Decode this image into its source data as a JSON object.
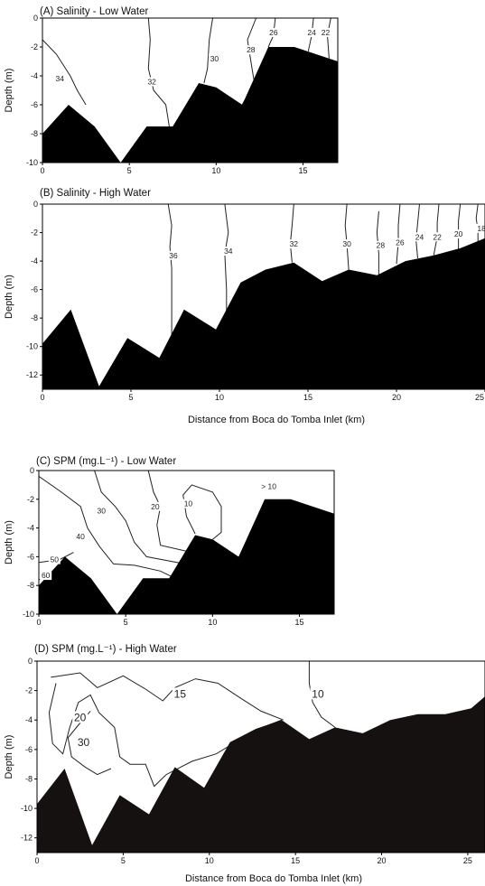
{
  "chart_data": [
    {
      "type": "contour-section",
      "title": "(A) Salinity - Low Water",
      "ylabel": "Depth (m)",
      "xlabel": "",
      "xlim": [
        0,
        17
      ],
      "ylim": [
        -10,
        0
      ],
      "xticks": [
        0,
        5,
        10,
        15
      ],
      "yticks": [
        0,
        -2,
        -4,
        -6,
        -8,
        -10
      ],
      "bottom": [
        [
          0,
          -8
        ],
        [
          1.5,
          -6
        ],
        [
          3,
          -7.5
        ],
        [
          4.5,
          -10
        ],
        [
          6,
          -7.5
        ],
        [
          7.5,
          -7.5
        ],
        [
          9,
          -4.5
        ],
        [
          10,
          -4.8
        ],
        [
          11.5,
          -6
        ],
        [
          13,
          -2
        ],
        [
          14.5,
          -2
        ],
        [
          17,
          -3
        ]
      ],
      "contours": [
        {
          "label": "34",
          "points": [
            [
              0,
              -1.5
            ],
            [
              0.8,
              -2.5
            ],
            [
              1.6,
              -4
            ],
            [
              2,
              -5
            ],
            [
              2.5,
              -6
            ]
          ],
          "label_at": [
            1,
            -4.2
          ]
        },
        {
          "label": "32",
          "points": [
            [
              6.1,
              0
            ],
            [
              6.2,
              -1.5
            ],
            [
              6.1,
              -3.5
            ],
            [
              6.4,
              -5
            ],
            [
              7.1,
              -6
            ],
            [
              7.3,
              -7.5
            ]
          ],
          "label_at": [
            6.3,
            -4.4
          ]
        },
        {
          "label": "30",
          "points": [
            [
              9.8,
              0
            ],
            [
              9.6,
              -1.5
            ],
            [
              9.5,
              -3.5
            ],
            [
              9.3,
              -4.5
            ]
          ],
          "label_at": [
            9.9,
            -2.8
          ]
        },
        {
          "label": "28",
          "points": [
            [
              12.3,
              0
            ],
            [
              11.8,
              -1.5
            ],
            [
              12,
              -3
            ],
            [
              12.2,
              -4.5
            ],
            [
              11.5,
              -6
            ]
          ],
          "label_at": [
            12,
            -2.2
          ]
        },
        {
          "label": "26",
          "points": [
            [
              13.4,
              0
            ],
            [
              13.3,
              -1.2
            ],
            [
              13,
              -2
            ]
          ],
          "label_at": [
            13.3,
            -1
          ]
        },
        {
          "label": "24",
          "points": [
            [
              15.6,
              0
            ],
            [
              15.5,
              -1.2
            ],
            [
              15.3,
              -2.3
            ]
          ],
          "label_at": [
            15.5,
            -1
          ]
        },
        {
          "label": "22",
          "points": [
            [
              16.6,
              0
            ],
            [
              16.4,
              -1.2
            ],
            [
              16.5,
              -2.8
            ]
          ],
          "label_at": [
            16.3,
            -1
          ]
        }
      ]
    },
    {
      "type": "contour-section",
      "title": "(B) Salinity - High Water",
      "ylabel": "Depth (m)",
      "xlabel": "Distance from Boca do Tomba Inlet (km)",
      "xlim": [
        0,
        25
      ],
      "ylim": [
        -13,
        0
      ],
      "xticks": [
        0,
        5,
        10,
        15,
        20,
        25
      ],
      "yticks": [
        0,
        -2,
        -4,
        -6,
        -8,
        -10,
        -12
      ],
      "bottom": [
        [
          0,
          -9.8
        ],
        [
          1.6,
          -7.4
        ],
        [
          3.2,
          -12.8
        ],
        [
          4.8,
          -9.4
        ],
        [
          6.6,
          -10.8
        ],
        [
          8,
          -7.4
        ],
        [
          9.8,
          -8.8
        ],
        [
          11.2,
          -5.5
        ],
        [
          12.6,
          -4.6
        ],
        [
          14.2,
          -4.1
        ],
        [
          15.8,
          -5.4
        ],
        [
          17.3,
          -4.6
        ],
        [
          18.9,
          -5
        ],
        [
          20.5,
          -4
        ],
        [
          22.1,
          -3.6
        ],
        [
          23.6,
          -3.1
        ],
        [
          25,
          -2.4
        ]
      ],
      "contours": [
        {
          "label": "36",
          "points": [
            [
              7.1,
              0
            ],
            [
              7.3,
              -1.5
            ],
            [
              7.2,
              -3
            ],
            [
              7.3,
              -4.5
            ],
            [
              7.3,
              -9.5
            ]
          ],
          "label_at": [
            7.4,
            -3.6
          ]
        },
        {
          "label": "34",
          "points": [
            [
              10.3,
              0
            ],
            [
              10.5,
              -2
            ],
            [
              10.3,
              -3.5
            ],
            [
              10.4,
              -6
            ],
            [
              10.4,
              -8
            ]
          ],
          "label_at": [
            10.5,
            -3.3
          ]
        },
        {
          "label": "32",
          "points": [
            [
              14.2,
              0
            ],
            [
              14.1,
              -1.5
            ],
            [
              14,
              -2.8
            ],
            [
              14.1,
              -4.1
            ]
          ],
          "label_at": [
            14.2,
            -2.8
          ]
        },
        {
          "label": "30",
          "points": [
            [
              17.2,
              0
            ],
            [
              17.1,
              -1.5
            ],
            [
              17.2,
              -2.8
            ],
            [
              17.3,
              -4.6
            ]
          ],
          "label_at": [
            17.2,
            -2.8
          ]
        },
        {
          "label": "28",
          "points": [
            [
              19,
              -0.5
            ],
            [
              18.9,
              -2
            ],
            [
              19,
              -3.5
            ],
            [
              19,
              -5
            ]
          ],
          "label_at": [
            19.1,
            -2.9
          ]
        },
        {
          "label": "26",
          "points": [
            [
              20.2,
              0
            ],
            [
              20.1,
              -1.5
            ],
            [
              20.1,
              -2.7
            ],
            [
              20,
              -4.2
            ]
          ],
          "label_at": [
            20.2,
            -2.7
          ]
        },
        {
          "label": "24",
          "points": [
            [
              21.3,
              0
            ],
            [
              21.2,
              -1.3
            ],
            [
              21.1,
              -2.5
            ],
            [
              21.2,
              -3.8
            ]
          ],
          "label_at": [
            21.3,
            -2.3
          ]
        },
        {
          "label": "22",
          "points": [
            [
              22.4,
              0
            ],
            [
              22.3,
              -1.3
            ],
            [
              22.3,
              -2.3
            ],
            [
              22.1,
              -3.6
            ]
          ],
          "label_at": [
            22.3,
            -2.3
          ]
        },
        {
          "label": "20",
          "points": [
            [
              23.6,
              0
            ],
            [
              23.5,
              -1.2
            ],
            [
              23.5,
              -2.1
            ],
            [
              23.5,
              -3.2
            ]
          ],
          "label_at": [
            23.5,
            -2.1
          ]
        },
        {
          "label": "18",
          "points": [
            [
              24.6,
              0
            ],
            [
              24.5,
              -1
            ],
            [
              24.6,
              -1.8
            ],
            [
              24.6,
              -2.6
            ]
          ],
          "label_at": [
            24.8,
            -1.7
          ]
        }
      ]
    },
    {
      "type": "contour-section",
      "title": "(C) SPM (mg.L⁻¹) - Low Water",
      "ylabel": "Depth (m)",
      "xlabel": "",
      "xlim": [
        0,
        17
      ],
      "ylim": [
        -10,
        0
      ],
      "xticks": [
        0,
        5,
        10,
        15
      ],
      "yticks": [
        0,
        -2,
        -4,
        -6,
        -8,
        -10
      ],
      "bottom": [
        [
          0,
          -8
        ],
        [
          1.5,
          -6
        ],
        [
          3,
          -7.5
        ],
        [
          4.5,
          -10
        ],
        [
          6,
          -7.5
        ],
        [
          7.5,
          -7.5
        ],
        [
          9,
          -4.5
        ],
        [
          10,
          -4.8
        ],
        [
          11.5,
          -6
        ],
        [
          13,
          -2
        ],
        [
          14.5,
          -2
        ],
        [
          17,
          -3
        ]
      ],
      "contours": [
        {
          "label": "60",
          "points": [
            [
              0,
              -7.6
            ],
            [
              1,
              -7.2
            ]
          ],
          "label_at": [
            0.4,
            -7.3
          ]
        },
        {
          "label": "50",
          "points": [
            [
              0,
              -6.4
            ],
            [
              1.2,
              -6.2
            ],
            [
              2,
              -5.7
            ]
          ],
          "label_at": [
            0.9,
            -6.2
          ]
        },
        {
          "label": "40",
          "points": [
            [
              0,
              -0.4
            ],
            [
              1.3,
              -1.5
            ],
            [
              2.4,
              -2.5
            ],
            [
              2.8,
              -4
            ],
            [
              3.5,
              -5.3
            ],
            [
              4.3,
              -6.5
            ],
            [
              5.5,
              -6.6
            ],
            [
              7,
              -7
            ],
            [
              8,
              -7.6
            ]
          ],
          "label_at": [
            2.4,
            -4.6
          ]
        },
        {
          "label": "30",
          "points": [
            [
              3.2,
              0
            ],
            [
              3.6,
              -1.5
            ],
            [
              4.4,
              -2.5
            ],
            [
              5,
              -3.5
            ],
            [
              5.5,
              -5
            ],
            [
              6.2,
              -6
            ],
            [
              8.4,
              -6.5
            ]
          ],
          "label_at": [
            3.6,
            -2.8
          ]
        },
        {
          "label": "20",
          "points": [
            [
              6.3,
              0
            ],
            [
              6.6,
              -1.5
            ],
            [
              7,
              -2.5
            ],
            [
              6.8,
              -3.8
            ],
            [
              7,
              -5.2
            ],
            [
              8.8,
              -5.7
            ]
          ],
          "label_at": [
            6.7,
            -2.5
          ]
        },
        {
          "label": "10",
          "points": [
            [
              9,
              -4.4
            ],
            [
              8.5,
              -3.2
            ],
            [
              8.3,
              -1.7
            ],
            [
              8.8,
              -1
            ],
            [
              10,
              -1.5
            ],
            [
              10.5,
              -2.5
            ],
            [
              10.5,
              -4.3
            ],
            [
              10,
              -4.8
            ]
          ],
          "label_at": [
            8.6,
            -2.3
          ]
        }
      ],
      "annotations": [
        {
          "text": "> 10",
          "at": [
            12.8,
            -1.3
          ]
        }
      ]
    },
    {
      "type": "contour-section",
      "title": "(D) SPM (mg.L⁻¹) - High Water",
      "ylabel": "Depth (m)",
      "xlabel": "Distance from Boca do Tomba Inlet (km)",
      "xlim": [
        0,
        26
      ],
      "ylim": [
        -13,
        0
      ],
      "xticks": [
        0,
        5,
        10,
        15,
        20,
        25
      ],
      "yticks": [
        0,
        -2,
        -4,
        -6,
        -8,
        -10,
        -12
      ],
      "bottom": [
        [
          0,
          -9.7
        ],
        [
          1.6,
          -7.3
        ],
        [
          3.2,
          -12.5
        ],
        [
          4.8,
          -9.1
        ],
        [
          6.5,
          -10.4
        ],
        [
          8,
          -7.2
        ],
        [
          9.7,
          -8.6
        ],
        [
          11.2,
          -5.5
        ],
        [
          12.7,
          -4.6
        ],
        [
          14.2,
          -4
        ],
        [
          15.8,
          -5.3
        ],
        [
          17.3,
          -4.5
        ],
        [
          18.9,
          -4.9
        ],
        [
          20.5,
          -4
        ],
        [
          22.1,
          -3.6
        ],
        [
          23.7,
          -3.6
        ],
        [
          25.2,
          -3.2
        ],
        [
          26,
          -2.4
        ]
      ],
      "contours": [
        {
          "label": "10",
          "points": [
            [
              15.8,
              0
            ],
            [
              15.8,
              -1.5
            ],
            [
              16,
              -2.8
            ],
            [
              16.5,
              -3.8
            ],
            [
              17.3,
              -4.5
            ]
          ],
          "label_at": [
            16.3,
            -2.2
          ]
        },
        {
          "label": "15",
          "points": [
            [
              0.8,
              -1.1
            ],
            [
              2.5,
              -0.8
            ],
            [
              3.5,
              -1.8
            ],
            [
              5,
              -1
            ],
            [
              6.3,
              -1.9
            ],
            [
              7.3,
              -2.7
            ],
            [
              8,
              -1.8
            ],
            [
              9.2,
              -1.2
            ],
            [
              10.5,
              -1.5
            ],
            [
              11.8,
              -2.5
            ],
            [
              13,
              -3.4
            ],
            [
              14.3,
              -4
            ]
          ],
          "label_at": [
            8.3,
            -2.2
          ]
        },
        {
          "label": "20",
          "points": [
            [
              1.1,
              -1.5
            ],
            [
              0.7,
              -3.5
            ],
            [
              0.9,
              -5.6
            ],
            [
              1.5,
              -6.3
            ],
            [
              1.9,
              -4.5
            ],
            [
              2.4,
              -2.8
            ],
            [
              3.1,
              -2.3
            ],
            [
              3.6,
              -3.5
            ],
            [
              4.5,
              -4.5
            ],
            [
              4.8,
              -6.5
            ],
            [
              5.4,
              -7
            ],
            [
              6.3,
              -7
            ],
            [
              6.8,
              -8.5
            ],
            [
              7.5,
              -7.7
            ],
            [
              9,
              -6.8
            ],
            [
              10.4,
              -6.3
            ],
            [
              11.8,
              -5.3
            ],
            [
              13.3,
              -4.4
            ],
            [
              14.2,
              -4
            ]
          ],
          "label_at": [
            2.5,
            -3.8
          ]
        },
        {
          "label": "30",
          "points": [
            [
              3.1,
              -3.4
            ],
            [
              2.5,
              -4.2
            ],
            [
              1.8,
              -5.2
            ],
            [
              2,
              -6.5
            ],
            [
              2.8,
              -7.2
            ],
            [
              3.5,
              -7.7
            ],
            [
              4.3,
              -7.3
            ]
          ],
          "label_at": [
            2.7,
            -5.5
          ]
        }
      ]
    }
  ]
}
